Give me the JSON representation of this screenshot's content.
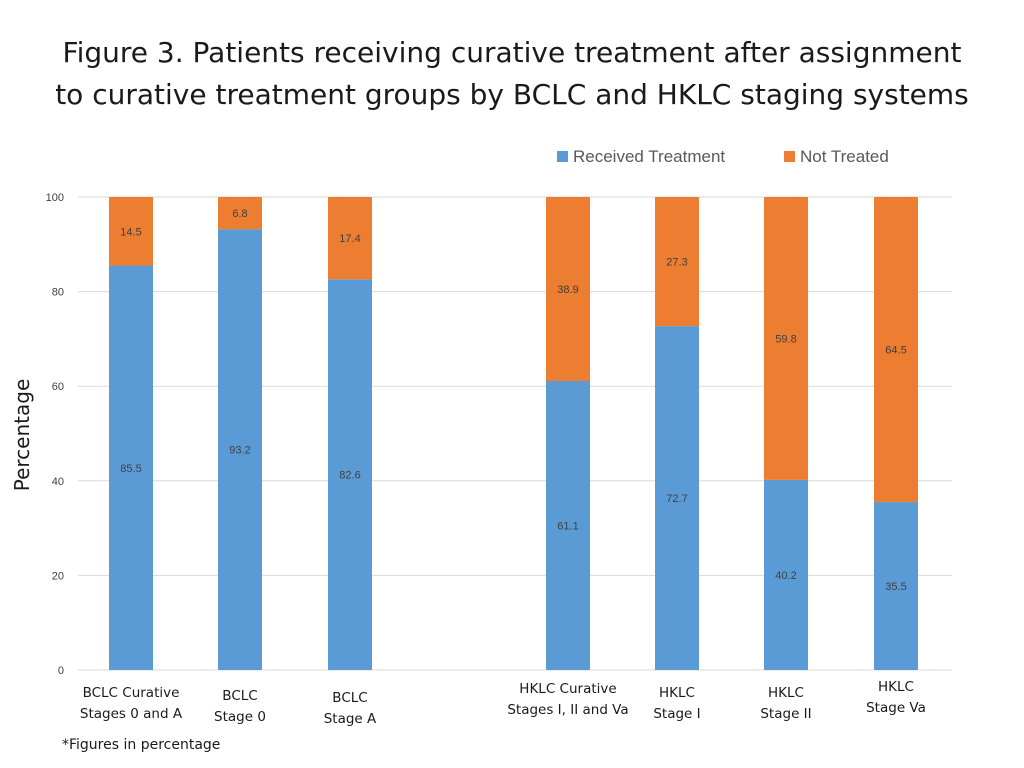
{
  "title_lines": [
    "Figure 3. Patients receiving curative treatment after assignment",
    "to curative treatment groups by BCLC and HKLC staging systems"
  ],
  "footnote": "*Figures in percentage",
  "colors": {
    "received": "#5b9bd5",
    "not_treated": "#ed7d31",
    "grid": "#d9d9d9",
    "axis_text": "#404040",
    "legend_text": "#595959"
  },
  "chart_data": {
    "type": "bar",
    "stacked": true,
    "title": "Figure 3. Patients receiving curative treatment after assignment to curative treatment groups by BCLC and HKLC staging systems",
    "xlabel": "",
    "ylabel": "Percentage",
    "ylim": [
      0,
      100
    ],
    "yticks": [
      0,
      20,
      40,
      60,
      80,
      100
    ],
    "grid": true,
    "legend_position": "top-right",
    "categories": [
      [
        "BCLC Curative",
        "Stages 0 and A"
      ],
      [
        "BCLC",
        "Stage 0"
      ],
      [
        "BCLC",
        "Stage A"
      ],
      [
        "",
        ""
      ],
      [
        "HKLC Curative",
        "Stages I, II and Va"
      ],
      [
        "HKLC",
        "Stage I"
      ],
      [
        "HKLC",
        "Stage II"
      ],
      [
        "HKLC",
        "Stage Va"
      ]
    ],
    "series": [
      {
        "name": "Received Treatment",
        "values": [
          85.5,
          93.2,
          82.6,
          null,
          61.1,
          72.7,
          40.2,
          35.5
        ],
        "labels": [
          "85.5",
          "93.2",
          "82.6",
          null,
          "61.1",
          "72.7",
          "40.2",
          "35.5"
        ]
      },
      {
        "name": "Not Treated",
        "values": [
          14.5,
          6.8,
          17.4,
          null,
          38.9,
          27.3,
          59.8,
          64.5
        ],
        "labels": [
          "14.5",
          "6.8",
          "17.4",
          null,
          "38.9",
          "27.3",
          "59.8",
          "64.5"
        ]
      }
    ]
  }
}
